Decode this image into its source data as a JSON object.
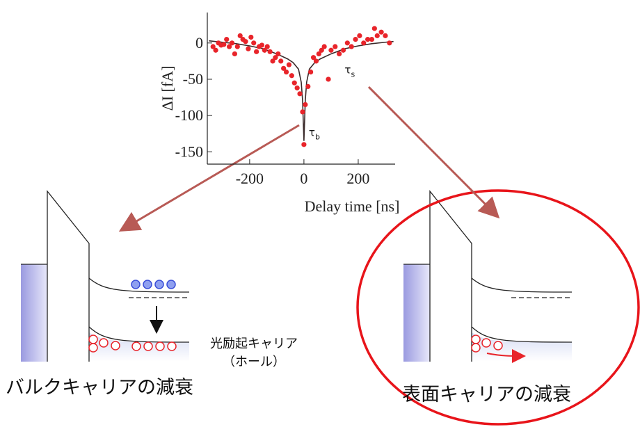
{
  "chart_data": {
    "type": "scatter",
    "xlabel": "Delay time [ns]",
    "ylabel": "ΔI [fA]",
    "xlim": [
      -356,
      336
    ],
    "ylim": [
      -167,
      42
    ],
    "xticks": [
      -200,
      0,
      200
    ],
    "yticks": [
      0,
      -50,
      -100,
      -150
    ],
    "color": "#e8242a",
    "x": [
      -335,
      -325,
      -315,
      -305,
      -295,
      -285,
      -275,
      -265,
      -255,
      -245,
      -235,
      -225,
      -215,
      -205,
      -195,
      -185,
      -175,
      -165,
      -155,
      -145,
      -135,
      -125,
      -115,
      -105,
      -95,
      -85,
      -75,
      -65,
      -55,
      -45,
      -35,
      -25,
      -15,
      -5,
      0,
      5,
      15,
      25,
      35,
      45,
      55,
      65,
      75,
      90,
      100,
      115,
      130,
      145,
      160,
      175,
      190,
      205,
      220,
      235,
      250,
      260,
      270,
      285,
      300,
      315
    ],
    "values": [
      -5,
      -10,
      0,
      -3,
      -2,
      5,
      -5,
      0,
      -15,
      -5,
      10,
      5,
      2,
      -8,
      8,
      0,
      -12,
      -5,
      -3,
      -10,
      -5,
      -12,
      -25,
      -20,
      -15,
      -25,
      -35,
      -40,
      -30,
      -45,
      -55,
      -62,
      -70,
      -95,
      -140,
      -85,
      -60,
      -40,
      -20,
      -25,
      -15,
      -10,
      -5,
      -50,
      -10,
      -5,
      -15,
      -10,
      0,
      -5,
      5,
      10,
      0,
      5,
      5,
      20,
      10,
      15,
      10,
      0
    ],
    "fit": {
      "color": "#3a2a2a",
      "x": [
        -350,
        -300,
        -250,
        -200,
        -150,
        -100,
        -60,
        -40,
        -20,
        -10,
        -5,
        0,
        5,
        10,
        20,
        40,
        60,
        100,
        150,
        200,
        250,
        300,
        330
      ],
      "values": [
        3,
        1,
        -1,
        -4,
        -8,
        -15,
        -22,
        -27,
        -36,
        -54,
        -79,
        -135,
        -79,
        -54,
        -36,
        -27,
        -22,
        -15,
        -8,
        -4,
        -1,
        1,
        2
      ]
    },
    "annotations": [
      {
        "text": "τ",
        "subscript": "b",
        "x": 18,
        "y": -128
      },
      {
        "text": "τ",
        "subscript": "s",
        "x": 150,
        "y": -42
      }
    ]
  },
  "diagram": {
    "carrier_label": "光励起キャリア",
    "carrier_sub": "（ホール）",
    "left_caption": "バルクキャリアの減衰",
    "right_caption": "表面キャリアの減衰"
  }
}
